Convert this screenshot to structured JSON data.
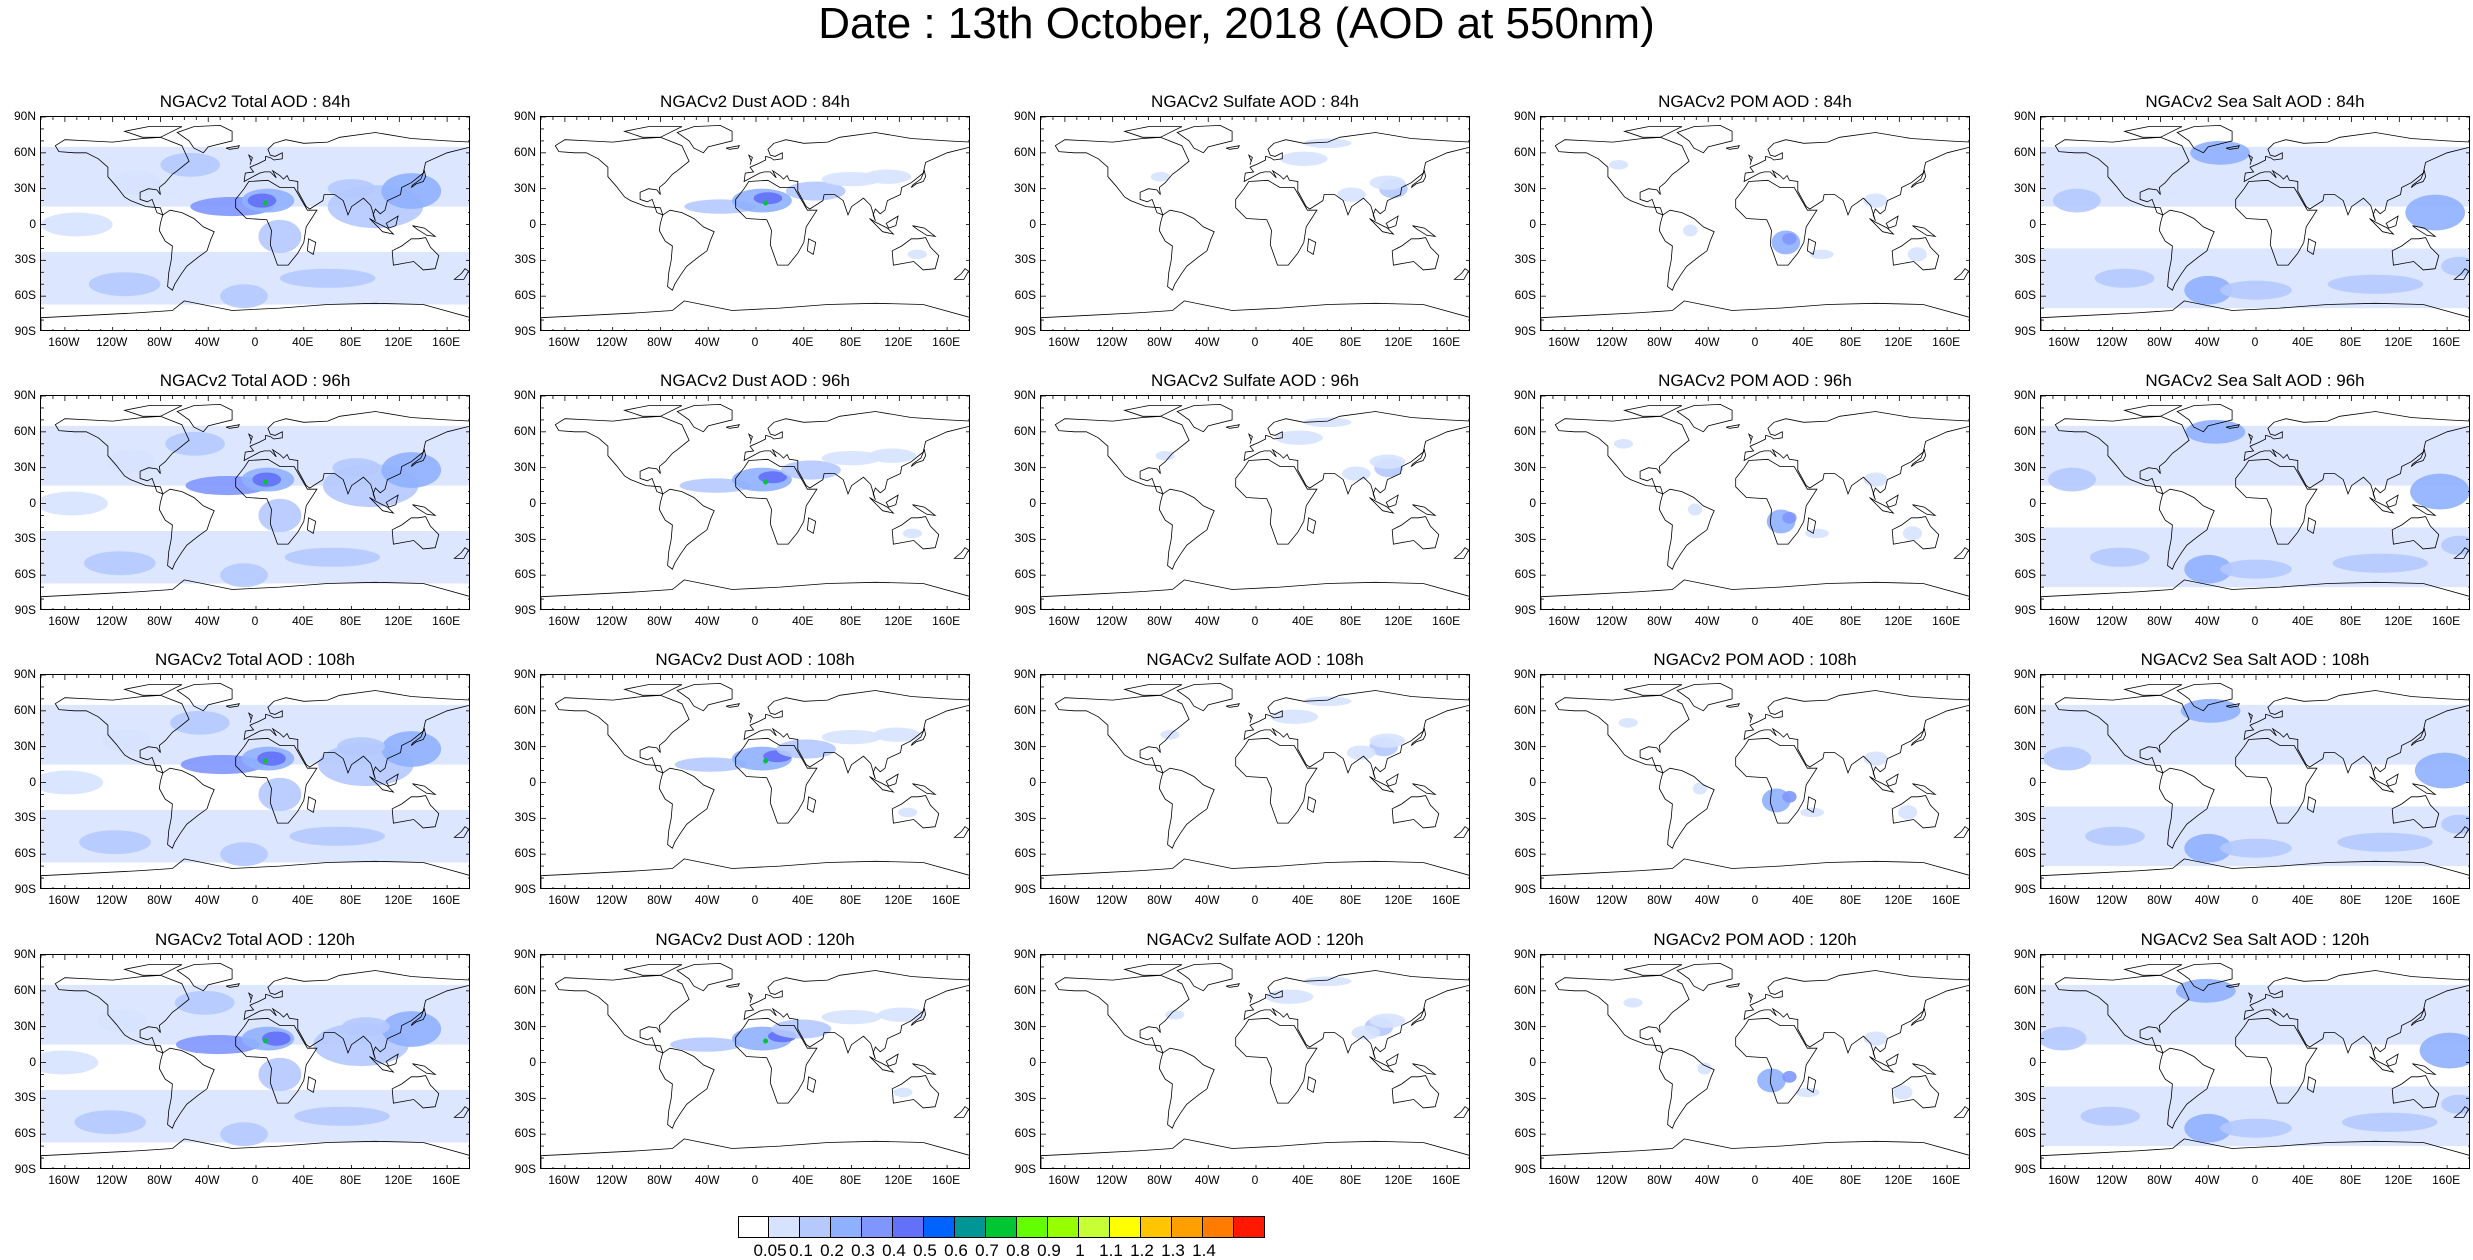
{
  "title": "Date : 13th October, 2018 (AOD at 550nm)",
  "latitude_labels": [
    "90N",
    "60N",
    "30N",
    "0",
    "30S",
    "60S",
    "90S"
  ],
  "longitude_labels": [
    "160W",
    "120W",
    "80W",
    "40W",
    "0",
    "40E",
    "80E",
    "120E",
    "160E"
  ],
  "panels": [
    {
      "title": "NGACv2 Total AOD : 84h",
      "species": "total",
      "hour": 84
    },
    {
      "title": "NGACv2 Dust AOD : 84h",
      "species": "dust",
      "hour": 84
    },
    {
      "title": "NGACv2 Sulfate AOD : 84h",
      "species": "sulfate",
      "hour": 84
    },
    {
      "title": "NGACv2 POM AOD : 84h",
      "species": "pom",
      "hour": 84
    },
    {
      "title": "NGACv2 Sea Salt AOD : 84h",
      "species": "seasalt",
      "hour": 84
    },
    {
      "title": "NGACv2 Total AOD : 96h",
      "species": "total",
      "hour": 96
    },
    {
      "title": "NGACv2 Dust AOD : 96h",
      "species": "dust",
      "hour": 96
    },
    {
      "title": "NGACv2 Sulfate AOD : 96h",
      "species": "sulfate",
      "hour": 96
    },
    {
      "title": "NGACv2 POM AOD : 96h",
      "species": "pom",
      "hour": 96
    },
    {
      "title": "NGACv2 Sea Salt AOD : 96h",
      "species": "seasalt",
      "hour": 96
    },
    {
      "title": "NGACv2 Total AOD : 108h",
      "species": "total",
      "hour": 108
    },
    {
      "title": "NGACv2 Dust AOD : 108h",
      "species": "dust",
      "hour": 108
    },
    {
      "title": "NGACv2 Sulfate AOD : 108h",
      "species": "sulfate",
      "hour": 108
    },
    {
      "title": "NGACv2 POM AOD : 108h",
      "species": "pom",
      "hour": 108
    },
    {
      "title": "NGACv2 Sea Salt AOD : 108h",
      "species": "seasalt",
      "hour": 108
    },
    {
      "title": "NGACv2 Total AOD : 120h",
      "species": "total",
      "hour": 120
    },
    {
      "title": "NGACv2 Dust AOD : 120h",
      "species": "dust",
      "hour": 120
    },
    {
      "title": "NGACv2 Sulfate AOD : 120h",
      "species": "sulfate",
      "hour": 120
    },
    {
      "title": "NGACv2 POM AOD : 120h",
      "species": "pom",
      "hour": 120
    },
    {
      "title": "NGACv2 Sea Salt  AOD : 120h",
      "species": "seasalt",
      "hour": 120
    }
  ],
  "colorbar": {
    "ticks": [
      "0.05",
      "0.1",
      "0.2",
      "0.3",
      "0.4",
      "0.5",
      "0.6",
      "0.7",
      "0.8",
      "0.9",
      "1",
      "1.1",
      "1.2",
      "1.3",
      "1.4"
    ],
    "colors": [
      "#ffffff",
      "#d6e2ff",
      "#b5c9ff",
      "#8fb0ff",
      "#7f96ff",
      "#6370f8",
      "#0063ff",
      "#009696",
      "#00c633",
      "#63ff00",
      "#96ff00",
      "#c6ff33",
      "#ffff00",
      "#ffc600",
      "#ffa000",
      "#ff7c00",
      "#ff1900"
    ]
  }
}
